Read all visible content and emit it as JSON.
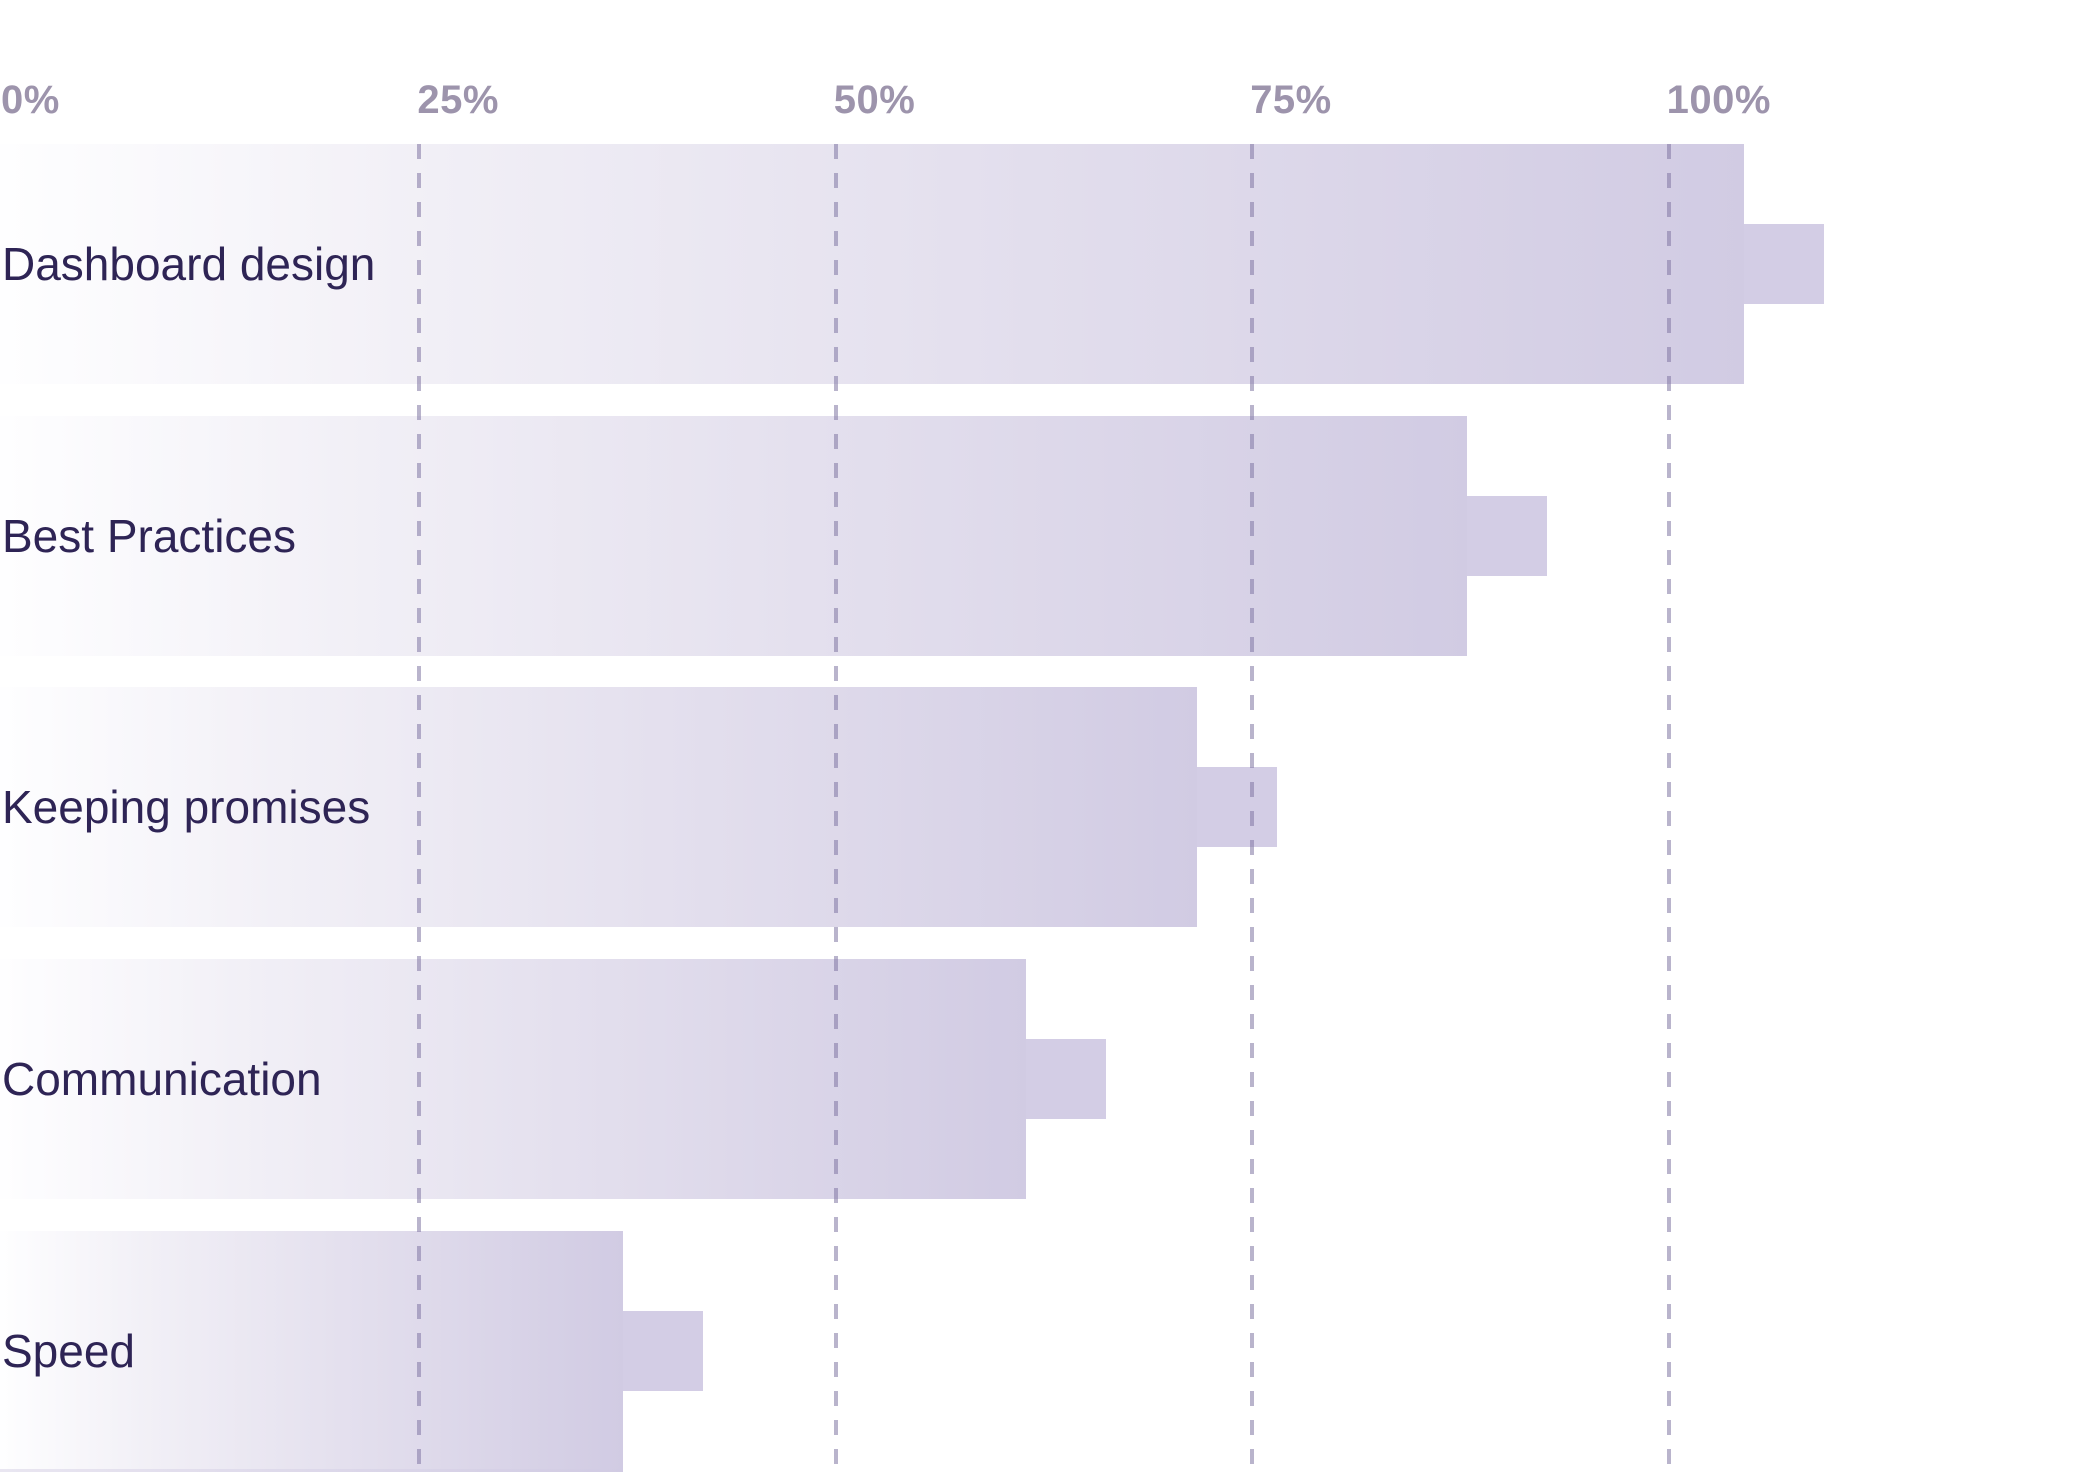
{
  "chart_data": {
    "type": "bar",
    "orientation": "horizontal",
    "title": "",
    "categories": [
      "Dashboard design",
      "Best Practices",
      "Keeping promises",
      "Communication",
      "Speed"
    ],
    "values": [
      104.5,
      87.9,
      71.7,
      61.4,
      37.2
    ],
    "marker_values": [
      109.3,
      92.7,
      76.5,
      66.2,
      42.0
    ],
    "marker_note": "each bar ends with a square end-marker tab extending ~4.8% beyond the bar, vertically centered",
    "x_ticks": [
      {
        "label": "0%",
        "value": 0
      },
      {
        "label": "25%",
        "value": 25
      },
      {
        "label": "50%",
        "value": 50
      },
      {
        "label": "75%",
        "value": 75
      },
      {
        "label": "100%",
        "value": 100
      }
    ],
    "xlim": [
      0,
      124.7
    ],
    "grid": "dashed vertical gridlines at each tick, drawn over the bars, from axis-label baseline to bottom edge",
    "legend": "none",
    "partial_next_bar": {
      "visible": true,
      "approx_value": 37.2,
      "note": "top sliver of a sixth bar cut off at the bottom edge of the image"
    },
    "colors": {
      "background": "#ffffff",
      "bar_gradient_start": "#fefeff",
      "bar_gradient_end": "#d1cbe3",
      "end_marker": "#d3cde5",
      "gridline": "#8276a3",
      "tick_label": "#9d94ac",
      "category_label": "#2e2455"
    }
  }
}
